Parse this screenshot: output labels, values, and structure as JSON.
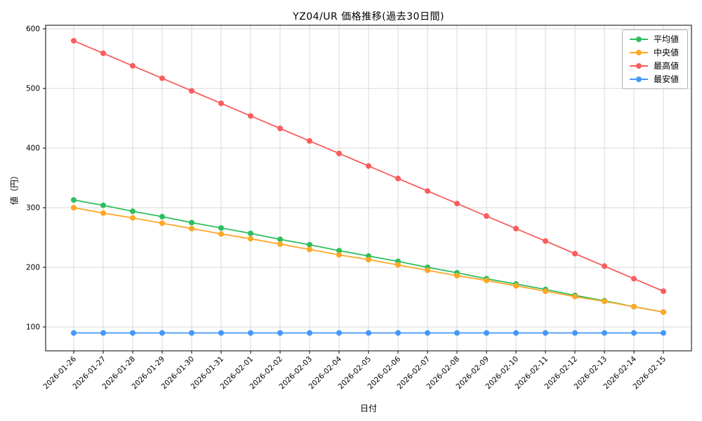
{
  "chart_data": {
    "type": "line",
    "title": "YZ04/UR 価格推移(過去30日間)",
    "xlabel": "日付",
    "ylabel": "値（円）",
    "ylim": [
      60,
      606
    ],
    "yticks": [
      100,
      200,
      300,
      400,
      500,
      600
    ],
    "grid": true,
    "legend_position": "upper right",
    "categories": [
      "2026-01-26",
      "2026-01-27",
      "2026-01-28",
      "2026-01-29",
      "2026-01-30",
      "2026-01-31",
      "2026-02-01",
      "2026-02-02",
      "2026-02-03",
      "2026-02-04",
      "2026-02-05",
      "2026-02-06",
      "2026-02-07",
      "2026-02-08",
      "2026-02-09",
      "2026-02-10",
      "2026-02-11",
      "2026-02-12",
      "2026-02-13",
      "2026-02-14",
      "2026-02-15"
    ],
    "series": [
      {
        "name": "平均値",
        "color": "#2fbe5f",
        "values": [
          313,
          304,
          294,
          285,
          275,
          266,
          257,
          247,
          238,
          228,
          219,
          210,
          200,
          191,
          181,
          172,
          163,
          153,
          144,
          134,
          125
        ]
      },
      {
        "name": "中央値",
        "color": "#ffa726",
        "values": [
          300,
          291,
          283,
          274,
          265,
          256,
          248,
          239,
          230,
          221,
          213,
          204,
          195,
          186,
          178,
          169,
          160,
          151,
          143,
          134,
          125
        ]
      },
      {
        "name": "最高値",
        "color": "#fa5d5d",
        "values": [
          580,
          559,
          538,
          517,
          496,
          475,
          454,
          433,
          412,
          391,
          370,
          349,
          328,
          307,
          286,
          265,
          244,
          223,
          202,
          181,
          160
        ]
      },
      {
        "name": "最安値",
        "color": "#4597f7",
        "values": [
          90,
          90,
          90,
          90,
          90,
          90,
          90,
          90,
          90,
          90,
          90,
          90,
          90,
          90,
          90,
          90,
          90,
          90,
          90,
          90,
          90
        ]
      }
    ]
  }
}
